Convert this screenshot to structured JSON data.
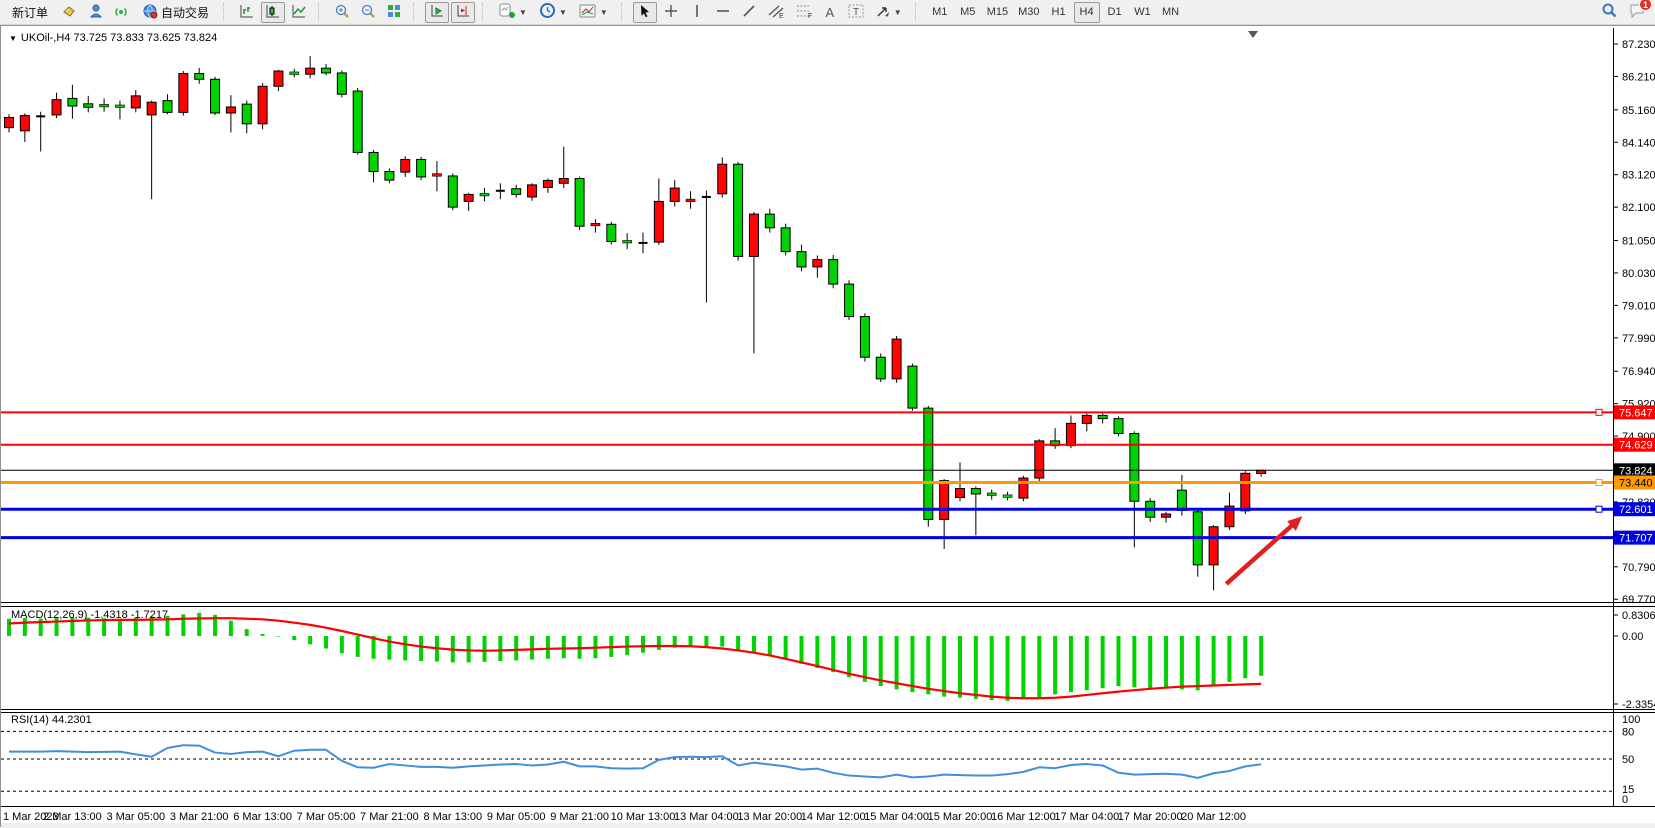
{
  "toolbar": {
    "new_order_label": "新订单",
    "auto_trading_label": "自动交易",
    "timeframes": [
      "M1",
      "M5",
      "M15",
      "M30",
      "H1",
      "H4",
      "D1",
      "W1",
      "MN"
    ],
    "active_timeframe": "H4",
    "chat_badge": "1",
    "text_tool_a": "A",
    "text_tool_t": "T"
  },
  "chart": {
    "title": "UKOil-,H4 73.725 73.833 73.625 73.824",
    "symbol": "UKOil-",
    "period": "H4",
    "ohlc": {
      "open": "73.725",
      "high": "73.833",
      "low": "73.625",
      "close": "73.824"
    },
    "price_axis_ticks": [
      "87.230",
      "86.210",
      "85.160",
      "84.140",
      "83.120",
      "82.100",
      "81.050",
      "80.030",
      "79.010",
      "77.990",
      "76.940",
      "75.920",
      "74.900",
      "72.830",
      "70.790",
      "69.770"
    ],
    "price_tags": [
      {
        "text": "75.647",
        "price": 75.647,
        "bg": "#ff0000",
        "fg": "#ffffff"
      },
      {
        "text": "74.629",
        "price": 74.629,
        "bg": "#ff0000",
        "fg": "#ffffff"
      },
      {
        "text": "73.824",
        "price": 73.824,
        "bg": "#000000",
        "fg": "#ffffff"
      },
      {
        "text": "73.440",
        "price": 73.44,
        "bg": "#ff9900",
        "fg": "#000000"
      },
      {
        "text": "72.601",
        "price": 72.601,
        "bg": "#0000e0",
        "fg": "#ffffff"
      },
      {
        "text": "71.707",
        "price": 71.707,
        "bg": "#0000e0",
        "fg": "#ffffff"
      }
    ],
    "hlines": [
      {
        "price": 75.647,
        "color": "#ff0000",
        "width": 2,
        "handle": true
      },
      {
        "price": 74.629,
        "color": "#ff0000",
        "width": 2,
        "handle": false
      },
      {
        "price": 73.824,
        "color": "#000000",
        "width": 1,
        "handle": false
      },
      {
        "price": 73.44,
        "color": "#ff9900",
        "width": 3,
        "handle": true
      },
      {
        "price": 72.601,
        "color": "#0000e0",
        "width": 3,
        "handle": true
      },
      {
        "price": 71.707,
        "color": "#0000e0",
        "width": 3,
        "handle": false
      }
    ],
    "time_axis_labels": [
      "1 Mar 2023",
      "2 Mar 13:00",
      "3 Mar 05:00",
      "3 Mar 21:00",
      "6 Mar 13:00",
      "7 Mar 05:00",
      "7 Mar 21:00",
      "8 Mar 13:00",
      "9 Mar 05:00",
      "9 Mar 21:00",
      "10 Mar 13:00",
      "13 Mar 04:00",
      "13 Mar 20:00",
      "14 Mar 12:00",
      "15 Mar 04:00",
      "15 Mar 20:00",
      "16 Mar 12:00",
      "17 Mar 04:00",
      "17 Mar 20:00",
      "20 Mar 12:00"
    ],
    "arrow_annotation": {
      "from_index": 76.8,
      "from_price": 70.25,
      "to_index": 81.6,
      "to_price": 72.38,
      "color": "#e02020"
    }
  },
  "chart_data": {
    "type": "candlestick",
    "title": "UKOil-,H4",
    "bull_color": "#ff0404",
    "bear_color": "#00d300",
    "wick_color": "#000000",
    "price_range": [
      69.77,
      87.23
    ],
    "labels_every_n_candles": 4,
    "candles": [
      [
        84.6,
        85.02,
        84.45,
        84.92,
        "u"
      ],
      [
        84.5,
        85.05,
        84.15,
        84.98,
        "u"
      ],
      [
        84.95,
        85.1,
        83.85,
        84.96,
        "x"
      ],
      [
        85.0,
        85.7,
        84.9,
        85.48,
        "u"
      ],
      [
        85.52,
        85.95,
        84.88,
        85.28,
        "d"
      ],
      [
        85.35,
        85.6,
        85.08,
        85.24,
        "d"
      ],
      [
        85.3,
        85.52,
        85.1,
        85.26,
        "d"
      ],
      [
        85.28,
        85.45,
        84.86,
        85.22,
        "d"
      ],
      [
        85.22,
        85.78,
        85.08,
        85.6,
        "u"
      ],
      [
        85.0,
        85.45,
        82.35,
        85.4,
        "u"
      ],
      [
        85.45,
        85.65,
        85.02,
        85.08,
        "d"
      ],
      [
        85.08,
        86.38,
        84.98,
        86.3,
        "u"
      ],
      [
        86.3,
        86.48,
        85.98,
        86.12,
        "d"
      ],
      [
        86.12,
        86.2,
        85.0,
        85.06,
        "d"
      ],
      [
        85.06,
        85.62,
        84.45,
        85.25,
        "u"
      ],
      [
        85.34,
        85.45,
        84.42,
        84.72,
        "d"
      ],
      [
        84.72,
        86.0,
        84.55,
        85.9,
        "u"
      ],
      [
        85.9,
        86.42,
        85.75,
        86.38,
        "u"
      ],
      [
        86.32,
        86.45,
        86.18,
        86.25,
        "d"
      ],
      [
        86.28,
        86.85,
        86.15,
        86.47,
        "u"
      ],
      [
        86.47,
        86.6,
        86.25,
        86.32,
        "d"
      ],
      [
        86.32,
        86.4,
        85.55,
        85.65,
        "d"
      ],
      [
        85.75,
        85.85,
        83.75,
        83.82,
        "d"
      ],
      [
        83.82,
        83.9,
        82.88,
        83.22,
        "d"
      ],
      [
        83.22,
        83.32,
        82.85,
        82.95,
        "d"
      ],
      [
        83.2,
        83.7,
        83.05,
        83.6,
        "u"
      ],
      [
        83.6,
        83.68,
        82.95,
        83.05,
        "d"
      ],
      [
        83.12,
        83.55,
        82.6,
        83.08,
        "u"
      ],
      [
        83.08,
        83.16,
        82.0,
        82.1,
        "d"
      ],
      [
        82.28,
        82.55,
        81.98,
        82.5,
        "u"
      ],
      [
        82.5,
        82.7,
        82.28,
        82.48,
        "d"
      ],
      [
        82.55,
        82.85,
        82.35,
        82.68,
        "x"
      ],
      [
        82.68,
        82.8,
        82.4,
        82.5,
        "d"
      ],
      [
        82.42,
        82.85,
        82.3,
        82.8,
        "u"
      ],
      [
        82.72,
        83.0,
        82.55,
        82.94,
        "u"
      ],
      [
        82.85,
        84.0,
        82.7,
        83.0,
        "u"
      ],
      [
        83.0,
        83.06,
        81.38,
        81.5,
        "d"
      ],
      [
        81.5,
        81.72,
        81.3,
        81.56,
        "u"
      ],
      [
        81.56,
        81.64,
        80.92,
        81.02,
        "d"
      ],
      [
        81.02,
        81.28,
        80.78,
        80.95,
        "d"
      ],
      [
        80.95,
        81.3,
        80.65,
        81.0,
        "x"
      ],
      [
        81.0,
        83.0,
        80.92,
        82.28,
        "u"
      ],
      [
        82.28,
        82.95,
        82.12,
        82.7,
        "u"
      ],
      [
        82.25,
        82.6,
        82.05,
        82.32,
        "u"
      ],
      [
        82.32,
        82.62,
        79.1,
        82.52,
        "x"
      ],
      [
        82.52,
        83.66,
        82.4,
        83.45,
        "u"
      ],
      [
        83.45,
        83.52,
        80.42,
        80.55,
        "d"
      ],
      [
        80.55,
        81.95,
        77.5,
        81.88,
        "u"
      ],
      [
        81.88,
        82.05,
        81.3,
        81.45,
        "d"
      ],
      [
        81.45,
        81.58,
        80.58,
        80.7,
        "d"
      ],
      [
        80.7,
        80.92,
        80.08,
        80.22,
        "d"
      ],
      [
        80.22,
        80.58,
        79.88,
        80.45,
        "u"
      ],
      [
        80.45,
        80.6,
        79.55,
        79.68,
        "d"
      ],
      [
        79.68,
        79.8,
        78.55,
        78.66,
        "d"
      ],
      [
        78.66,
        78.76,
        77.24,
        77.38,
        "d"
      ],
      [
        77.38,
        77.5,
        76.6,
        76.7,
        "d"
      ],
      [
        76.7,
        78.05,
        76.58,
        77.95,
        "u"
      ],
      [
        77.1,
        77.18,
        75.7,
        75.78,
        "d"
      ],
      [
        75.78,
        75.85,
        72.05,
        72.28,
        "d"
      ],
      [
        72.28,
        73.55,
        71.35,
        73.5,
        "u"
      ],
      [
        72.97,
        74.07,
        72.85,
        73.25,
        "u"
      ],
      [
        73.25,
        73.32,
        71.78,
        73.08,
        "d"
      ],
      [
        73.08,
        73.22,
        72.9,
        73.02,
        "d"
      ],
      [
        73.02,
        73.15,
        72.88,
        72.95,
        "d"
      ],
      [
        72.95,
        73.65,
        72.85,
        73.58,
        "u"
      ],
      [
        73.58,
        74.8,
        73.48,
        74.75,
        "u"
      ],
      [
        74.75,
        75.15,
        74.5,
        74.6,
        "d"
      ],
      [
        74.6,
        75.55,
        74.52,
        75.3,
        "u"
      ],
      [
        75.3,
        75.65,
        75.05,
        75.55,
        "u"
      ],
      [
        75.55,
        75.68,
        75.3,
        75.45,
        "d"
      ],
      [
        75.45,
        75.52,
        74.9,
        74.98,
        "d"
      ],
      [
        74.98,
        75.05,
        71.4,
        72.85,
        "d"
      ],
      [
        72.85,
        72.95,
        72.2,
        72.35,
        "d"
      ],
      [
        72.35,
        72.52,
        72.18,
        72.45,
        "u"
      ],
      [
        73.2,
        73.68,
        72.4,
        72.56,
        "d"
      ],
      [
        72.52,
        72.6,
        70.48,
        70.85,
        "d"
      ],
      [
        70.85,
        72.1,
        70.05,
        72.05,
        "u"
      ],
      [
        72.05,
        73.12,
        71.95,
        72.7,
        "u"
      ],
      [
        72.55,
        73.8,
        72.45,
        73.73,
        "u"
      ],
      [
        73.725,
        73.833,
        73.625,
        73.824,
        "u"
      ]
    ],
    "macd": {
      "display": "MACD(12,26,9) -1.4318 -1.7217",
      "name": "MACD(12,26,9)",
      "main_value": -1.4318,
      "signal_value": -1.7217,
      "axis_labels": [
        "0.8306",
        "0.00",
        "-2.3354"
      ],
      "scale_max": 0.8306,
      "scale_min": -2.3354,
      "histogram_color": "#00d300",
      "signal_color": "#ff0000",
      "histogram": [
        0.62,
        0.65,
        0.63,
        0.66,
        0.68,
        0.66,
        0.64,
        0.62,
        0.66,
        0.7,
        0.72,
        0.78,
        0.8306,
        0.76,
        0.55,
        0.25,
        0.07,
        -0.02,
        -0.15,
        -0.3,
        -0.45,
        -0.62,
        -0.75,
        -0.82,
        -0.85,
        -0.88,
        -0.9,
        -0.92,
        -0.95,
        -0.95,
        -0.93,
        -0.9,
        -0.88,
        -0.85,
        -0.82,
        -0.8,
        -0.82,
        -0.8,
        -0.75,
        -0.68,
        -0.6,
        -0.5,
        -0.42,
        -0.36,
        -0.4,
        -0.38,
        -0.5,
        -0.62,
        -0.72,
        -0.85,
        -1.0,
        -1.15,
        -1.3,
        -1.48,
        -1.65,
        -1.8,
        -1.92,
        -2.02,
        -2.1,
        -2.18,
        -2.22,
        -2.26,
        -2.3,
        -2.3354,
        -2.28,
        -2.2,
        -2.1,
        -2.02,
        -1.95,
        -1.88,
        -1.8,
        -1.85,
        -1.9,
        -1.88,
        -1.92,
        -1.95,
        -1.8,
        -1.65,
        -1.52,
        -1.4318
      ],
      "signal": [
        0.45,
        0.48,
        0.5,
        0.52,
        0.54,
        0.56,
        0.57,
        0.58,
        0.58,
        0.59,
        0.6,
        0.62,
        0.63,
        0.64,
        0.64,
        0.62,
        0.6,
        0.55,
        0.48,
        0.4,
        0.3,
        0.18,
        0.05,
        -0.08,
        -0.2,
        -0.3,
        -0.38,
        -0.44,
        -0.49,
        -0.52,
        -0.53,
        -0.52,
        -0.5,
        -0.48,
        -0.46,
        -0.45,
        -0.44,
        -0.42,
        -0.4,
        -0.38,
        -0.37,
        -0.36,
        -0.36,
        -0.37,
        -0.4,
        -0.45,
        -0.52,
        -0.6,
        -0.7,
        -0.82,
        -0.95,
        -1.08,
        -1.22,
        -1.36,
        -1.48,
        -1.6,
        -1.7,
        -1.8,
        -1.9,
        -1.98,
        -2.06,
        -2.12,
        -2.18,
        -2.22,
        -2.24,
        -2.24,
        -2.22,
        -2.18,
        -2.12,
        -2.06,
        -2.0,
        -1.95,
        -1.9,
        -1.86,
        -1.82,
        -1.8,
        -1.78,
        -1.76,
        -1.74,
        -1.7217
      ]
    },
    "rsi": {
      "display": "RSI(14) 44.2301",
      "name": "RSI(14)",
      "value": 44.2301,
      "axis_labels": [
        "100",
        "80",
        "50",
        "15",
        "0"
      ],
      "levels": [
        80,
        50,
        15
      ],
      "range": [
        0,
        100
      ],
      "line_color": "#3f8fde",
      "series": [
        58,
        58,
        58,
        58.5,
        58,
        57.5,
        57.8,
        58,
        55,
        52.5,
        62,
        65,
        64.5,
        57,
        55.5,
        57.5,
        58,
        53,
        59,
        60,
        60,
        48,
        41,
        40.5,
        44.5,
        43,
        41.5,
        41.5,
        40.5,
        42,
        43,
        44,
        44.5,
        43,
        44,
        47,
        42,
        42,
        40,
        39.5,
        40,
        49,
        52,
        52.5,
        52,
        53,
        43,
        46,
        44,
        42,
        38.5,
        39.5,
        35,
        32,
        31,
        30,
        33,
        30,
        31,
        33,
        32.5,
        32,
        32,
        33.5,
        36,
        41,
        40,
        43.5,
        44.5,
        43,
        35,
        33,
        33.5,
        34,
        33,
        29.5,
        34.5,
        37,
        42,
        44.2301
      ]
    }
  }
}
